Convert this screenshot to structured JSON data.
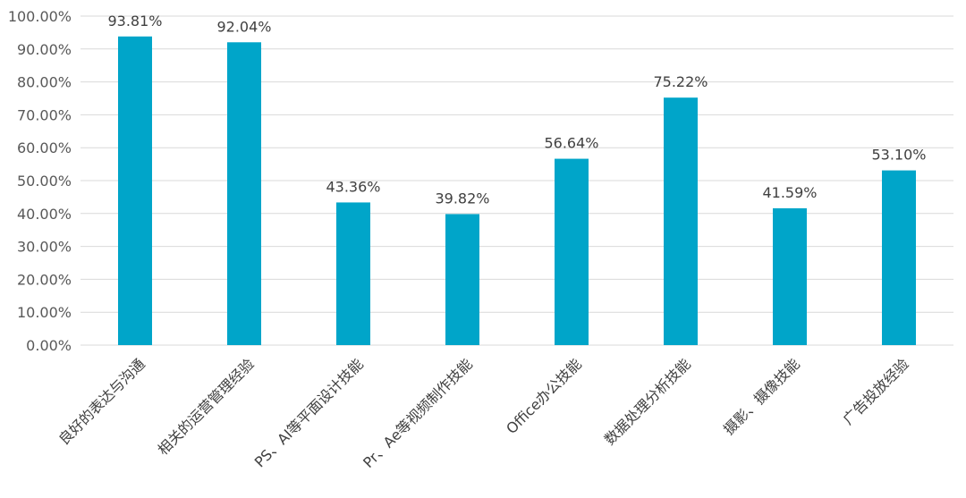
{
  "chart_data": {
    "type": "bar",
    "categories": [
      "良好的表达与沟通",
      "相关的运营管理经验",
      "PS、AI等平面设计技能",
      "Pr、Ae等视频制作技能",
      "Office办公技能",
      "数据处理分析技能",
      "摄影、摄像技能",
      "广告投放经验"
    ],
    "values": [
      93.81,
      92.04,
      43.36,
      39.82,
      56.64,
      75.22,
      41.59,
      53.1
    ],
    "data_labels": [
      "93.81%",
      "92.04%",
      "43.36%",
      "39.82%",
      "56.64%",
      "75.22%",
      "41.59%",
      "53.10%"
    ],
    "yticks": [
      "0.00%",
      "10.00%",
      "20.00%",
      "30.00%",
      "40.00%",
      "50.00%",
      "60.00%",
      "70.00%",
      "80.00%",
      "90.00%",
      "100.00%"
    ],
    "ylim": [
      0,
      100
    ],
    "grid": true,
    "bar_color": "#00A5C9",
    "grid_color": "#D9D9D9",
    "title": "",
    "xlabel": "",
    "ylabel": ""
  }
}
